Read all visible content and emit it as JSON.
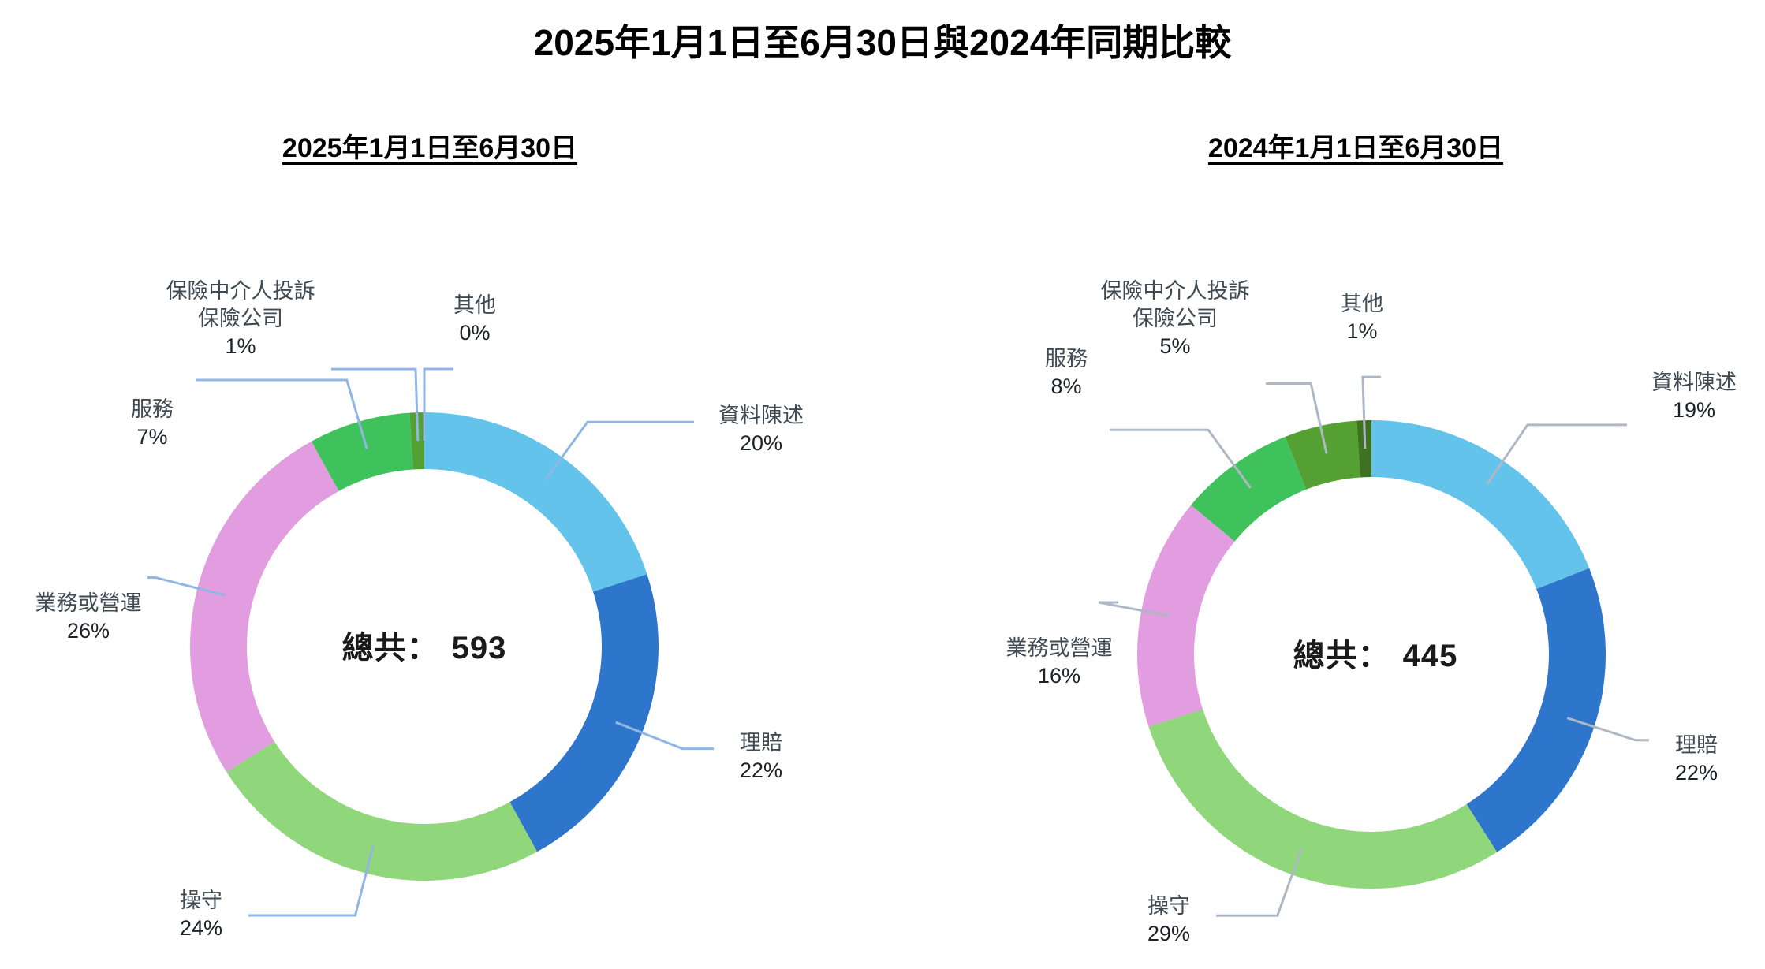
{
  "page_title": "2025年1月1日至6月30日與2024年同期比較",
  "chart_data": {
    "type": "pie",
    "subtype": "donut",
    "legend_position": "none",
    "charts": [
      {
        "subtitle": "2025年1月1日至6月30日",
        "total_label": "總共：",
        "total_value": "593",
        "leader_color": "#8FB6E4",
        "segments": [
          {
            "key": "data-statement",
            "label": "資料陳述",
            "label_lines": [
              "資料陳述"
            ],
            "value_pct": 20,
            "pct_text": "20%",
            "color": "#63C3EB"
          },
          {
            "key": "claims",
            "label": "理賠",
            "label_lines": [
              "理賠"
            ],
            "value_pct": 22,
            "pct_text": "22%",
            "color": "#2E76CB"
          },
          {
            "key": "conduct",
            "label": "操守",
            "label_lines": [
              "操守"
            ],
            "value_pct": 24,
            "pct_text": "24%",
            "color": "#90D67B"
          },
          {
            "key": "business-or-operations",
            "label": "業務或營運",
            "label_lines": [
              "業務或營運"
            ],
            "value_pct": 26,
            "pct_text": "26%",
            "color": "#E19DDF"
          },
          {
            "key": "service",
            "label": "服務",
            "label_lines": [
              "服務"
            ],
            "value_pct": 7,
            "pct_text": "7%",
            "color": "#3FC25C"
          },
          {
            "key": "intermediary-complaints-against-insurers",
            "label": "保險中介人投訴保險公司",
            "label_lines": [
              "保險中介人投訴",
              "保險公司"
            ],
            "value_pct": 1,
            "pct_text": "1%",
            "color": "#55A032"
          },
          {
            "key": "others",
            "label": "其他",
            "label_lines": [
              "其他"
            ],
            "value_pct": 0,
            "pct_text": "0%",
            "color": "#3E7120"
          }
        ]
      },
      {
        "subtitle": "2024年1月1日至6月30日",
        "total_label": "總共：",
        "total_value": "445",
        "leader_color": "#AEB8C4",
        "segments": [
          {
            "key": "data-statement",
            "label": "資料陳述",
            "label_lines": [
              "資料陳述"
            ],
            "value_pct": 19,
            "pct_text": "19%",
            "color": "#63C3EB"
          },
          {
            "key": "claims",
            "label": "理賠",
            "label_lines": [
              "理賠"
            ],
            "value_pct": 22,
            "pct_text": "22%",
            "color": "#2E76CB"
          },
          {
            "key": "conduct",
            "label": "操守",
            "label_lines": [
              "操守"
            ],
            "value_pct": 29,
            "pct_text": "29%",
            "color": "#90D67B"
          },
          {
            "key": "business-or-operations",
            "label": "業務或營運",
            "label_lines": [
              "業務或營運"
            ],
            "value_pct": 16,
            "pct_text": "16%",
            "color": "#E19DDF"
          },
          {
            "key": "service",
            "label": "服務",
            "label_lines": [
              "服務"
            ],
            "value_pct": 8,
            "pct_text": "8%",
            "color": "#3FC25C"
          },
          {
            "key": "intermediary-complaints-against-insurers",
            "label": "保險中介人投訴保險公司",
            "label_lines": [
              "保險中介人投訴",
              "保險公司"
            ],
            "value_pct": 5,
            "pct_text": "5%",
            "color": "#55A032"
          },
          {
            "key": "others",
            "label": "其他",
            "label_lines": [
              "其他"
            ],
            "value_pct": 1,
            "pct_text": "1%",
            "color": "#3E7120"
          }
        ]
      }
    ]
  }
}
